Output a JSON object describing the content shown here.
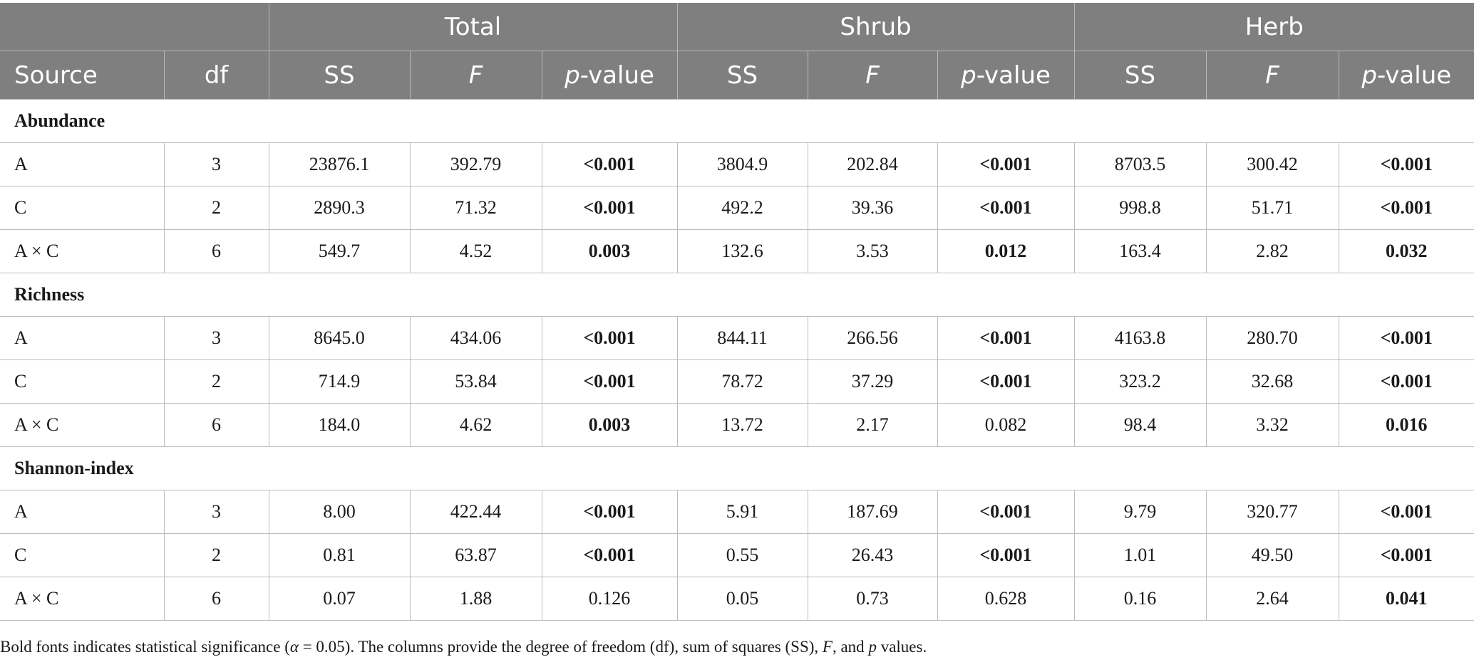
{
  "table": {
    "group_headers": [
      "",
      "Total",
      "Shrub",
      "Herb"
    ],
    "columns": [
      "Source",
      "df",
      "SS",
      "F",
      "p",
      "-value",
      "SS",
      "F",
      "p",
      "-value",
      "SS",
      "F",
      "p",
      "-value"
    ],
    "sections": [
      {
        "title": "Abundance",
        "rows": [
          {
            "source": "A",
            "df": "3",
            "total_ss": "23876.1",
            "total_f": "392.79",
            "total_p": "<0.001",
            "shrub_ss": "3804.9",
            "shrub_f": "202.84",
            "shrub_p": "<0.001",
            "herb_ss": "8703.5",
            "herb_f": "300.42",
            "herb_p": "<0.001"
          },
          {
            "source": "C",
            "df": "2",
            "total_ss": "2890.3",
            "total_f": "71.32",
            "total_p": "<0.001",
            "shrub_ss": "492.2",
            "shrub_f": "39.36",
            "shrub_p": "<0.001",
            "herb_ss": "998.8",
            "herb_f": "51.71",
            "herb_p": "<0.001"
          },
          {
            "source": "A × C",
            "df": "6",
            "total_ss": "549.7",
            "total_f": "4.52",
            "total_p": "0.003",
            "shrub_ss": "132.6",
            "shrub_f": "3.53",
            "shrub_p": "0.012",
            "herb_ss": "163.4",
            "herb_f": "2.82",
            "herb_p": "0.032"
          }
        ]
      },
      {
        "title": "Richness",
        "rows": [
          {
            "source": "A",
            "df": "3",
            "total_ss": "8645.0",
            "total_f": "434.06",
            "total_p": "<0.001",
            "shrub_ss": "844.11",
            "shrub_f": "266.56",
            "shrub_p": "<0.001",
            "herb_ss": "4163.8",
            "herb_f": "280.70",
            "herb_p": "<0.001"
          },
          {
            "source": "C",
            "df": "2",
            "total_ss": "714.9",
            "total_f": "53.84",
            "total_p": "<0.001",
            "shrub_ss": "78.72",
            "shrub_f": "37.29",
            "shrub_p": "<0.001",
            "herb_ss": "323.2",
            "herb_f": "32.68",
            "herb_p": "<0.001"
          },
          {
            "source": "A × C",
            "df": "6",
            "total_ss": "184.0",
            "total_f": "4.62",
            "total_p": "0.003",
            "shrub_ss": "13.72",
            "shrub_f": "2.17",
            "shrub_p": "0.082",
            "herb_ss": "98.4",
            "herb_f": "3.32",
            "herb_p": "0.016"
          }
        ]
      },
      {
        "title": "Shannon-index",
        "rows": [
          {
            "source": "A",
            "df": "3",
            "total_ss": "8.00",
            "total_f": "422.44",
            "total_p": "<0.001",
            "shrub_ss": "5.91",
            "shrub_f": "187.69",
            "shrub_p": "<0.001",
            "herb_ss": "9.79",
            "herb_f": "320.77",
            "herb_p": "<0.001"
          },
          {
            "source": "C",
            "df": "2",
            "total_ss": "0.81",
            "total_f": "63.87",
            "total_p": "<0.001",
            "shrub_ss": "0.55",
            "shrub_f": "26.43",
            "shrub_p": "<0.001",
            "herb_ss": "1.01",
            "herb_f": "49.50",
            "herb_p": "<0.001"
          },
          {
            "source": "A × C",
            "df": "6",
            "total_ss": "0.07",
            "total_f": "1.88",
            "total_p": "0.126",
            "shrub_ss": "0.05",
            "shrub_f": "0.73",
            "shrub_p": "0.628",
            "herb_ss": "0.16",
            "herb_f": "2.64",
            "herb_p": "0.041"
          }
        ]
      }
    ],
    "bold_values": [
      "<0.001",
      "0.003",
      "0.012",
      "0.032",
      "0.016",
      "0.041"
    ]
  },
  "footnote": "Bold fonts indicates statistical significance (α = 0.05). The columns provide the degree of freedom (df), sum of squares (SS), F, and p values."
}
